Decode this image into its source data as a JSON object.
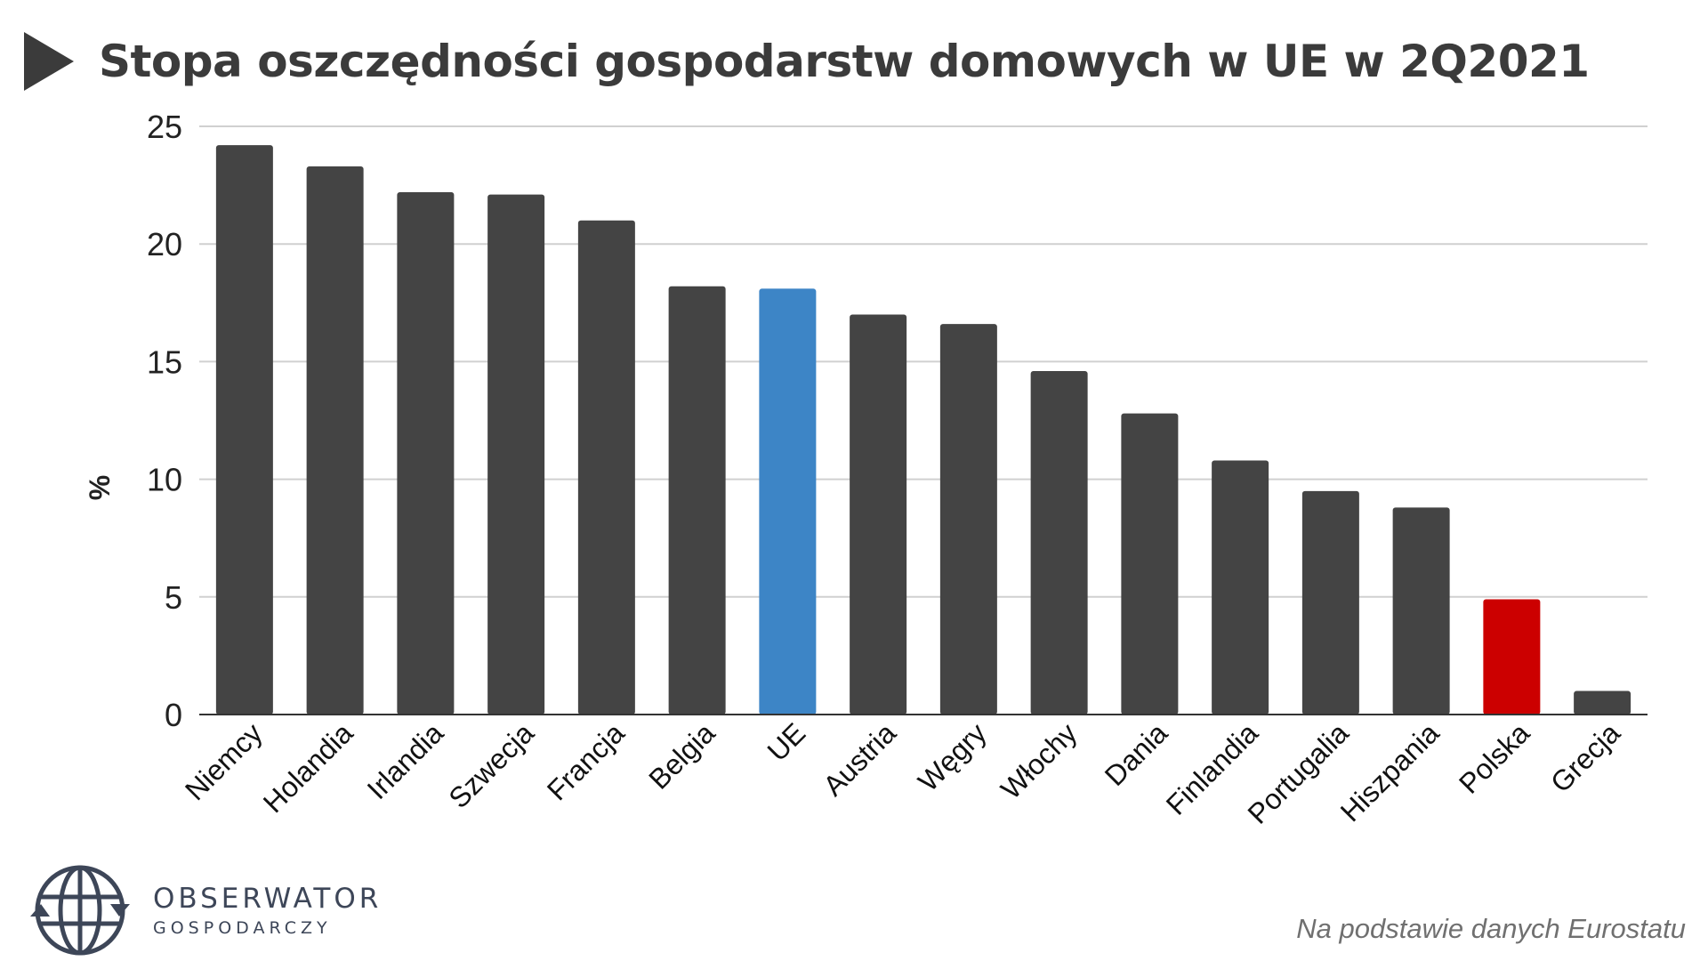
{
  "title": "Stopa oszczędności gospodarstw domowych w UE w 2Q2021",
  "logo": {
    "name": "OBSERWATOR",
    "subtitle": "GOSPODARCZY",
    "icon": "globe-arrows-icon"
  },
  "source": "Na podstawie danych Eurostatu",
  "colors": {
    "default": "#444444",
    "eu": "#3d85c6",
    "poland": "#cc0000"
  },
  "chart_data": {
    "type": "bar",
    "title": "Stopa oszczędności gospodarstw domowych w UE w 2Q2021",
    "xlabel": "",
    "ylabel": "%",
    "ylim": [
      0,
      25
    ],
    "yticks": [
      0,
      5,
      10,
      15,
      20,
      25
    ],
    "grid": true,
    "categories": [
      "Niemcy",
      "Holandia",
      "Irlandia",
      "Szwecja",
      "Francja",
      "Belgia",
      "UE",
      "Austria",
      "Węgry",
      "Włochy",
      "Dania",
      "Finlandia",
      "Portugalia",
      "Hiszpania",
      "Polska",
      "Grecja"
    ],
    "values": [
      24.2,
      23.3,
      22.2,
      22.1,
      21.0,
      18.2,
      18.1,
      17.0,
      16.6,
      14.6,
      12.8,
      10.8,
      9.5,
      8.8,
      4.9,
      1.0
    ],
    "highlight": {
      "UE": "eu",
      "Polska": "poland"
    }
  }
}
